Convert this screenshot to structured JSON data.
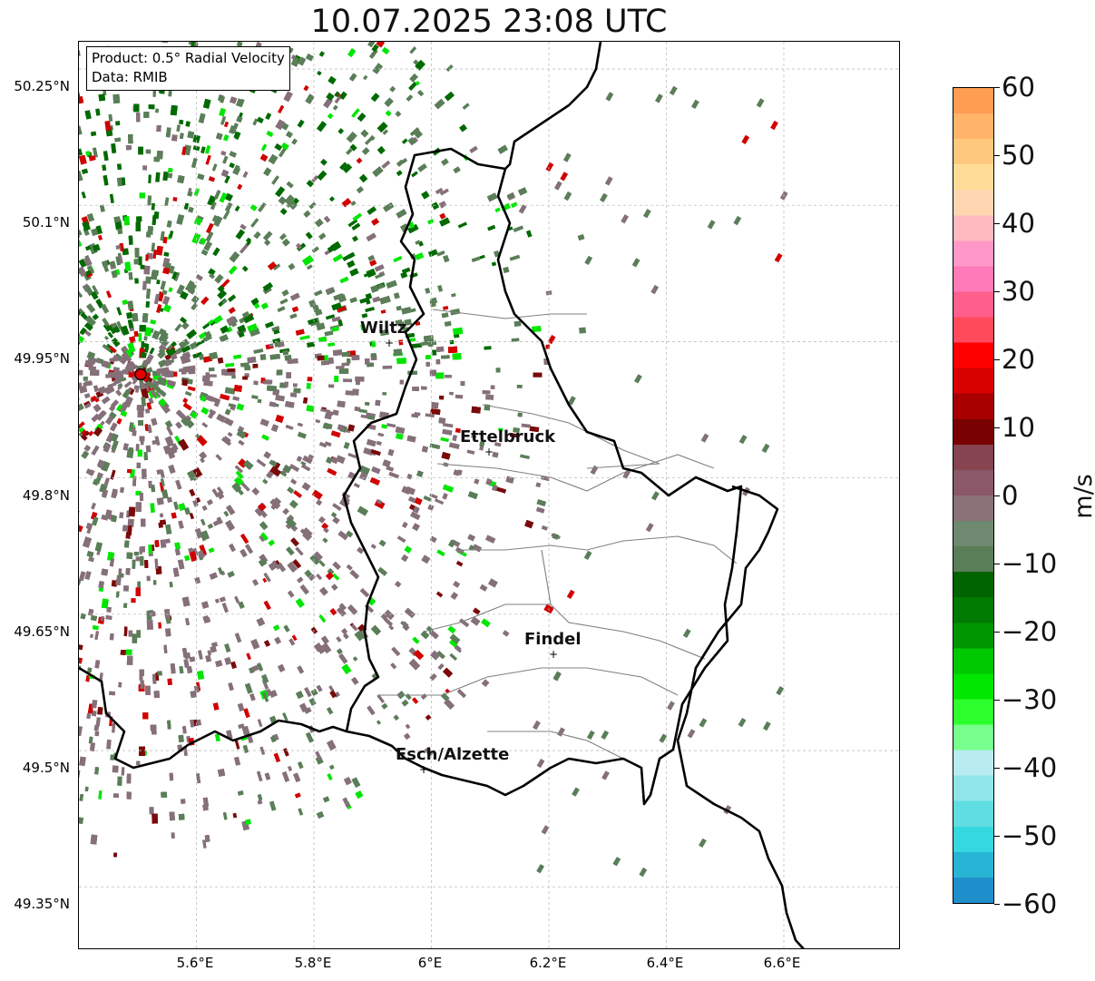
{
  "title": "10.07.2025 23:08 UTC",
  "infobox": {
    "product": "Product: 0.5° Radial Velocity",
    "source": "Data: RMIB"
  },
  "axes": {
    "lat_labels": [
      "50.25°N",
      "50.1°N",
      "49.95°N",
      "49.8°N",
      "49.65°N",
      "49.5°N",
      "49.35°N"
    ],
    "lon_labels": [
      "5.6°E",
      "5.8°E",
      "6°E",
      "6.2°E",
      "6.4°E",
      "6.6°E"
    ],
    "lat_values": [
      50.25,
      50.1,
      49.95,
      49.8,
      49.65,
      49.5,
      49.35
    ],
    "lon_values": [
      5.6,
      5.8,
      6.0,
      6.2,
      6.4,
      6.6
    ]
  },
  "cities": [
    {
      "name": "Wiltz",
      "lon": 5.93,
      "lat": 49.966
    },
    {
      "name": "Ettelbruck",
      "lon": 6.1,
      "lat": 49.846
    },
    {
      "name": "Findel",
      "lon": 6.21,
      "lat": 49.627
    },
    {
      "name": "Esch/Alzette",
      "lon": 5.99,
      "lat": 49.498
    }
  ],
  "radar_site": {
    "lon": 5.505,
    "lat": 49.914,
    "color": "#e00000"
  },
  "colorbar": {
    "unit": "m/s",
    "min": -60,
    "max": 60,
    "tick_labels": [
      "60",
      "50",
      "40",
      "30",
      "20",
      "10",
      "0",
      "−10",
      "−20",
      "−30",
      "−40",
      "−50",
      "−60"
    ],
    "tick_values": [
      60,
      50,
      40,
      30,
      20,
      10,
      0,
      -10,
      -20,
      -30,
      -40,
      -50,
      -60
    ],
    "colors_top_to_bottom": [
      "#ff9d52",
      "#ffb46a",
      "#ffc87f",
      "#ffdd96",
      "#ffd6b0",
      "#ffb9bf",
      "#ff98c8",
      "#ff7ab9",
      "#ff5f8c",
      "#ff4a5c",
      "#ff0000",
      "#d90000",
      "#a80000",
      "#780000",
      "#864450",
      "#8a5868",
      "#8a7278",
      "#6f8870",
      "#5a7e58",
      "#006400",
      "#007a00",
      "#009600",
      "#00c800",
      "#00e600",
      "#2dff2d",
      "#76ff8c",
      "#b8ecf0",
      "#8fe5ea",
      "#5fdde2",
      "#35d8df",
      "#28b4d4",
      "#1f8fcb"
    ]
  },
  "map_colors": {
    "velocity_green": "#5a7e58",
    "velocity_mauve": "#85707a",
    "velocity_dark_green": "#006a00",
    "velocity_bright_green": "#00e600",
    "velocity_red": "#d00000",
    "velocity_dark_red": "#7a0a0a",
    "border": "#000000",
    "canton_line": "#808080",
    "grid": "#bfbfbf"
  }
}
